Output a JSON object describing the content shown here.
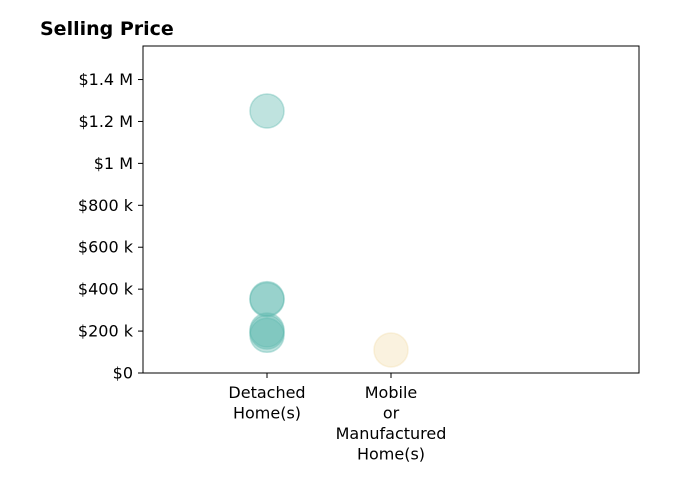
{
  "chart_data": {
    "type": "scatter",
    "title": "Selling Price",
    "xlabel": "",
    "ylabel": "",
    "categories": [
      [
        "Detached",
        "Home(s)"
      ],
      [
        "Mobile",
        "or",
        "Manufactured",
        "Home(s)"
      ]
    ],
    "ylim": [
      0,
      1560000
    ],
    "yticks": [
      0,
      200000,
      400000,
      600000,
      800000,
      1000000,
      1200000,
      1400000
    ],
    "ytick_labels": [
      "$0",
      "$200 k",
      "$400 k",
      "$600 k",
      "$800 k",
      "$1 M",
      "$1.2 M",
      "$1.4 M"
    ],
    "grid": false,
    "series": [
      {
        "category_index": 0,
        "color": "#5fb8ae",
        "values": [
          1250000,
          355000,
          350000,
          205000,
          195000,
          180000
        ]
      },
      {
        "category_index": 1,
        "color": "#f3deb0",
        "values": [
          110000
        ]
      }
    ]
  }
}
